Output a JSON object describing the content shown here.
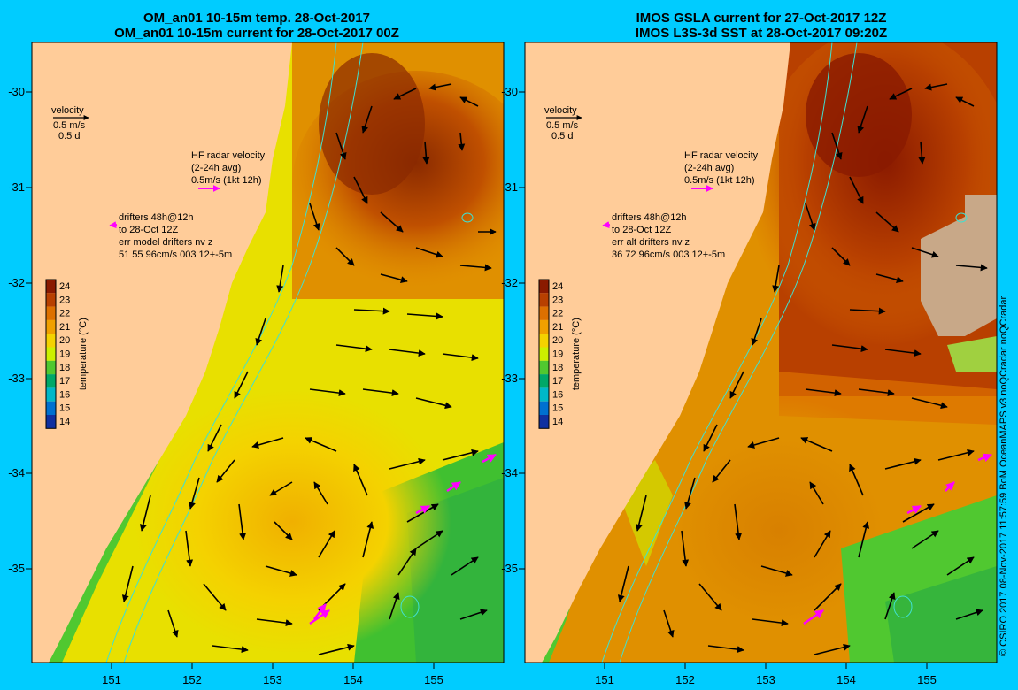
{
  "left_panel": {
    "title_line1": "OM_an01 10-15m temp. 28-Oct-2017",
    "title_line2": "OM_an01 10-15m current for 28-Oct-2017 00Z",
    "velocity_label": "velocity",
    "velocity_scale1": "0.5 m/s",
    "velocity_scale2": "0.5 d",
    "hf_label1": "HF radar velocity",
    "hf_label2": "(2-24h avg)",
    "hf_label3": "0.5m/s (1kt 12h)",
    "drifters_line1": "drifters 48h@12h",
    "drifters_line2": "to 28-Oct 12Z",
    "drifters_line3": "err model drifters nv z",
    "drifters_line4": "51 55 96cm/s 003 12+-5m"
  },
  "right_panel": {
    "title_line1": "IMOS GSLA current for 27-Oct-2017 12Z",
    "title_line2": "IMOS L3S-3d SST at 28-Oct-2017 09:20Z",
    "velocity_label": "velocity",
    "velocity_scale1": "0.5 m/s",
    "velocity_scale2": "0.5 d",
    "hf_label1": "HF radar velocity",
    "hf_label2": "(2-24h avg)",
    "hf_label3": "0.5m/s (1kt 12h)",
    "drifters_line1": "drifters 48h@12h",
    "drifters_line2": "to 28-Oct 12Z",
    "drifters_line3": "err alt drifters nv z",
    "drifters_line4": "36 72 96cm/s 003 12+-5m"
  },
  "axes": {
    "lon_ticks": [
      "151",
      "152",
      "153",
      "154",
      "155"
    ],
    "lat_ticks": [
      "-30",
      "-31",
      "-32",
      "-33",
      "-34",
      "-35"
    ]
  },
  "colorbar": {
    "label": "temperature (°C)",
    "ticks": [
      "24",
      "23",
      "22",
      "21",
      "20",
      "19",
      "18",
      "17",
      "16",
      "15",
      "14"
    ],
    "colors": [
      "#8a1a00",
      "#b84000",
      "#dd7000",
      "#f0a000",
      "#f4d200",
      "#ccf000",
      "#50c830",
      "#00a868",
      "#00b8c8",
      "#0070d0",
      "#1030a0"
    ]
  },
  "credit": "© CSIRO 2017  08-Nov-2017 11:57:59 BoM OceanMAPS v3 noQCradar noQCradar",
  "colors": {
    "background": "#00ccff",
    "land": "#ffcc99",
    "arrow": "#000000",
    "hf_radar": "#ff00ff",
    "isobath": "#40e0d0"
  }
}
